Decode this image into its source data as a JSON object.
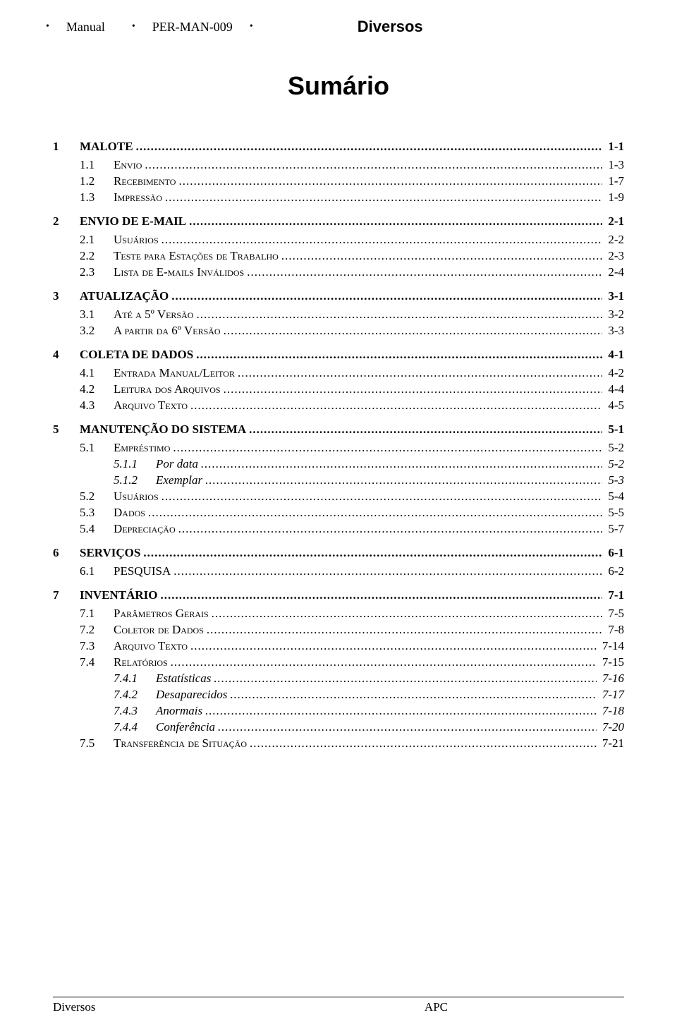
{
  "header": {
    "left1": "Manual",
    "code": "PER-MAN-009",
    "title": "Diversos"
  },
  "page_title": "Sumário",
  "toc": {
    "s1": {
      "num": "1",
      "label": "MALOTE",
      "page": "1-1"
    },
    "s11": {
      "num": "1.1",
      "label": "Envio",
      "page": "1-3"
    },
    "s12": {
      "num": "1.2",
      "label": "Recebimento",
      "page": "1-7"
    },
    "s13": {
      "num": "1.3",
      "label": "Impressão",
      "page": "1-9"
    },
    "s2": {
      "num": "2",
      "label": "ENVIO DE E-MAIL",
      "page": "2-1"
    },
    "s21": {
      "num": "2.1",
      "label": "Usuários",
      "page": "2-2"
    },
    "s22": {
      "num": "2.2",
      "label": "Teste para Estações de Trabalho",
      "page": "2-3"
    },
    "s23": {
      "num": "2.3",
      "label": "Lista de E-mails Inválidos",
      "page": "2-4"
    },
    "s3": {
      "num": "3",
      "label": "ATUALIZAÇÃO",
      "page": "3-1"
    },
    "s31": {
      "num": "3.1",
      "label": "Até a 5º Versão",
      "page": "3-2"
    },
    "s32": {
      "num": "3.2",
      "label": "A partir da 6º Versão",
      "page": "3-3"
    },
    "s4": {
      "num": "4",
      "label": "COLETA DE DADOS",
      "page": "4-1"
    },
    "s41": {
      "num": "4.1",
      "label": "Entrada Manual/Leitor",
      "page": "4-2"
    },
    "s42": {
      "num": "4.2",
      "label": "Leitura dos Arquivos",
      "page": "4-4"
    },
    "s43": {
      "num": "4.3",
      "label": "Arquivo Texto",
      "page": "4-5"
    },
    "s5": {
      "num": "5",
      "label": "MANUTENÇÃO DO SISTEMA",
      "page": "5-1"
    },
    "s51": {
      "num": "5.1",
      "label": "Empréstimo",
      "page": "5-2"
    },
    "s511": {
      "num": "5.1.1",
      "label": "Por data",
      "page": "5-2"
    },
    "s512": {
      "num": "5.1.2",
      "label": "Exemplar",
      "page": "5-3"
    },
    "s52": {
      "num": "5.2",
      "label": "Usuários",
      "page": "5-4"
    },
    "s53": {
      "num": "5.3",
      "label": "Dados",
      "page": "5-5"
    },
    "s54": {
      "num": "5.4",
      "label": "Depreciação",
      "page": "5-7"
    },
    "s6": {
      "num": "6",
      "label": "SERVIÇOS",
      "page": "6-1"
    },
    "s61": {
      "num": "6.1",
      "label": "PESQUISA",
      "page": "6-2"
    },
    "s7": {
      "num": "7",
      "label": "INVENTÁRIO",
      "page": "7-1"
    },
    "s71": {
      "num": "7.1",
      "label": "Parâmetros Gerais",
      "page": "7-5"
    },
    "s72": {
      "num": "7.2",
      "label": "Coletor de Dados",
      "page": "7-8"
    },
    "s73": {
      "num": "7.3",
      "label": "Arquivo Texto",
      "page": "7-14"
    },
    "s74": {
      "num": "7.4",
      "label": "Relatórios",
      "page": "7-15"
    },
    "s741": {
      "num": "7.4.1",
      "label": "Estatísticas",
      "page": "7-16"
    },
    "s742": {
      "num": "7.4.2",
      "label": "Desaparecidos",
      "page": "7-17"
    },
    "s743": {
      "num": "7.4.3",
      "label": "Anormais",
      "page": "7-18"
    },
    "s744": {
      "num": "7.4.4",
      "label": "Conferência",
      "page": "7-20"
    },
    "s75": {
      "num": "7.5",
      "label": "Transferência de Situação",
      "page": "7-21"
    }
  },
  "footer": {
    "left": "Diversos",
    "right": "APC"
  }
}
